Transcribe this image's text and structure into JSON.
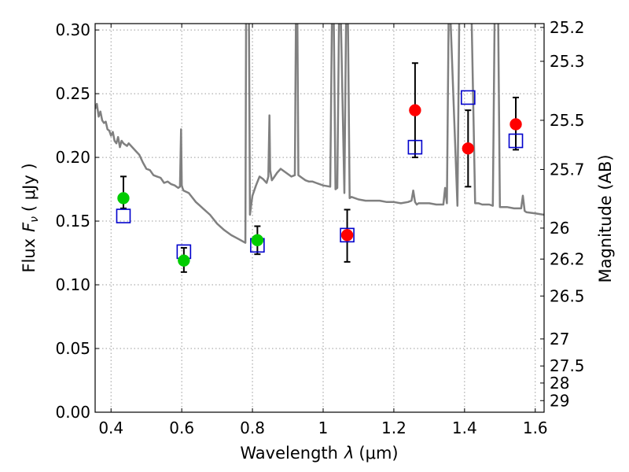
{
  "chart_data": {
    "type": "scatter",
    "xlabel_prefix": "Wavelength",
    "xlabel_symbol": "λ",
    "xlabel_unit": "(μm)",
    "ylabel_prefix": "Flux",
    "ylabel_symbol": "F",
    "ylabel_subscript": "ν",
    "ylabel_unit": "( μJy )",
    "y2label": "Magnitude (AB)",
    "xlim": [
      0.355,
      1.625
    ],
    "ylim": [
      0.0,
      0.305
    ],
    "grid": true,
    "x_ticks": [
      0.4,
      0.6,
      0.8,
      1.0,
      1.2,
      1.4,
      1.6
    ],
    "x_tick_labels": [
      "0.4",
      "0.6",
      "0.8",
      "1",
      "1.2",
      "1.4",
      "1.6"
    ],
    "y_ticks": [
      0.0,
      0.05,
      0.1,
      0.15,
      0.2,
      0.25,
      0.3
    ],
    "y_tick_labels": [
      "0.00",
      "0.05",
      "0.10",
      "0.15",
      "0.20",
      "0.25",
      "0.30"
    ],
    "magnitude_ticks": [
      {
        "label": "25.2",
        "flux": 0.302
      },
      {
        "label": "25.3",
        "flux": 0.2754
      },
      {
        "label": "25.5",
        "flux": 0.2291
      },
      {
        "label": "25.7",
        "flux": 0.1905
      },
      {
        "label": "26",
        "flux": 0.1445
      },
      {
        "label": "26.2",
        "flux": 0.1202
      },
      {
        "label": "26.5",
        "flux": 0.0912
      },
      {
        "label": "27",
        "flux": 0.0575
      },
      {
        "label": "27.5",
        "flux": 0.0363
      },
      {
        "label": "28",
        "flux": 0.0229
      },
      {
        "label": "29",
        "flux": 0.0091
      }
    ],
    "colors": {
      "observed_optical": "#00cc00",
      "observed_nir": "#ff0000",
      "model": "#0000cc",
      "spectrum": "#808080",
      "errorbar": "#000000",
      "grid": "#9a9a9a"
    },
    "series": [
      {
        "name": "observed-optical",
        "marker": "circle",
        "points": [
          {
            "x": 0.435,
            "y": 0.168,
            "yerr_low": 0.16,
            "yerr_high": 0.185
          },
          {
            "x": 0.606,
            "y": 0.119,
            "yerr_low": 0.11,
            "yerr_high": 0.129
          },
          {
            "x": 0.814,
            "y": 0.135,
            "yerr_low": 0.124,
            "yerr_high": 0.146
          }
        ]
      },
      {
        "name": "observed-nir",
        "marker": "circle",
        "points": [
          {
            "x": 1.068,
            "y": 0.139,
            "yerr_low": 0.118,
            "yerr_high": 0.159
          },
          {
            "x": 1.26,
            "y": 0.237,
            "yerr_low": 0.2,
            "yerr_high": 0.274
          },
          {
            "x": 1.41,
            "y": 0.207,
            "yerr_low": 0.177,
            "yerr_high": 0.237
          },
          {
            "x": 1.545,
            "y": 0.226,
            "yerr_low": 0.206,
            "yerr_high": 0.247
          }
        ]
      },
      {
        "name": "model-photometry",
        "marker": "square",
        "points": [
          {
            "x": 0.435,
            "y": 0.154
          },
          {
            "x": 0.606,
            "y": 0.126
          },
          {
            "x": 0.814,
            "y": 0.131
          },
          {
            "x": 1.068,
            "y": 0.139
          },
          {
            "x": 1.26,
            "y": 0.208
          },
          {
            "x": 1.41,
            "y": 0.247
          },
          {
            "x": 1.545,
            "y": 0.213
          }
        ]
      }
    ],
    "spectrum": {
      "name": "model-spectrum",
      "x": [
        0.355,
        0.36,
        0.365,
        0.37,
        0.375,
        0.38,
        0.385,
        0.39,
        0.395,
        0.4,
        0.405,
        0.41,
        0.415,
        0.42,
        0.425,
        0.43,
        0.435,
        0.44,
        0.445,
        0.45,
        0.46,
        0.47,
        0.48,
        0.49,
        0.5,
        0.51,
        0.52,
        0.53,
        0.54,
        0.55,
        0.56,
        0.57,
        0.58,
        0.59,
        0.595,
        0.598,
        0.6,
        0.602,
        0.605,
        0.62,
        0.64,
        0.66,
        0.68,
        0.7,
        0.72,
        0.74,
        0.76,
        0.78,
        0.782,
        0.785,
        0.788,
        0.79,
        0.793,
        0.796,
        0.8,
        0.81,
        0.82,
        0.83,
        0.84,
        0.845,
        0.848,
        0.85,
        0.855,
        0.86,
        0.87,
        0.88,
        0.89,
        0.9,
        0.91,
        0.92,
        0.923,
        0.925,
        0.927,
        0.93,
        0.94,
        0.95,
        0.96,
        0.97,
        0.98,
        1.0,
        1.02,
        1.025,
        1.028,
        1.03,
        1.035,
        1.04,
        1.045,
        1.05,
        1.06,
        1.065,
        1.07,
        1.075,
        1.08,
        1.1,
        1.12,
        1.14,
        1.16,
        1.18,
        1.2,
        1.22,
        1.24,
        1.25,
        1.255,
        1.26,
        1.265,
        1.27,
        1.3,
        1.32,
        1.34,
        1.345,
        1.35,
        1.355,
        1.36,
        1.38,
        1.385,
        1.39,
        1.395,
        1.4,
        1.405,
        1.41,
        1.415,
        1.42,
        1.43,
        1.44,
        1.45,
        1.46,
        1.47,
        1.48,
        1.485,
        1.49,
        1.495,
        1.5,
        1.52,
        1.54,
        1.56,
        1.565,
        1.57,
        1.575,
        1.6,
        1.625
      ],
      "y": [
        0.238,
        0.242,
        0.232,
        0.236,
        0.229,
        0.227,
        0.228,
        0.222,
        0.221,
        0.217,
        0.22,
        0.213,
        0.211,
        0.216,
        0.208,
        0.213,
        0.211,
        0.21,
        0.209,
        0.211,
        0.208,
        0.205,
        0.202,
        0.196,
        0.191,
        0.19,
        0.186,
        0.185,
        0.184,
        0.18,
        0.181,
        0.179,
        0.178,
        0.176,
        0.177,
        0.222,
        0.178,
        0.176,
        0.174,
        0.172,
        0.165,
        0.16,
        0.155,
        0.148,
        0.143,
        0.139,
        0.136,
        0.133,
        0.31,
        0.31,
        0.31,
        0.31,
        0.155,
        0.162,
        0.17,
        0.178,
        0.185,
        0.183,
        0.18,
        0.185,
        0.233,
        0.19,
        0.182,
        0.184,
        0.188,
        0.191,
        0.189,
        0.187,
        0.185,
        0.186,
        0.31,
        0.31,
        0.31,
        0.186,
        0.184,
        0.182,
        0.181,
        0.181,
        0.18,
        0.178,
        0.177,
        0.31,
        0.31,
        0.31,
        0.175,
        0.176,
        0.31,
        0.31,
        0.172,
        0.31,
        0.31,
        0.168,
        0.169,
        0.167,
        0.166,
        0.166,
        0.166,
        0.165,
        0.165,
        0.164,
        0.165,
        0.166,
        0.174,
        0.165,
        0.163,
        0.164,
        0.164,
        0.163,
        0.163,
        0.176,
        0.164,
        0.31,
        0.31,
        0.162,
        0.31,
        0.31,
        0.31,
        0.31,
        0.31,
        0.31,
        0.31,
        0.31,
        0.164,
        0.164,
        0.163,
        0.163,
        0.163,
        0.162,
        0.31,
        0.31,
        0.31,
        0.161,
        0.161,
        0.16,
        0.16,
        0.17,
        0.158,
        0.157,
        0.156,
        0.155
      ]
    }
  }
}
